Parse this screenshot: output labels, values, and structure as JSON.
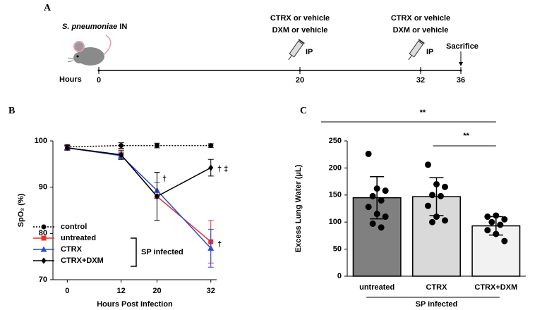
{
  "chart_data": [
    {
      "type": "timeline",
      "panel": "A",
      "xlabel": "Hours",
      "xlim": [
        0,
        36
      ],
      "xticks": [
        0,
        20,
        32,
        36
      ],
      "events": [
        {
          "x": 0,
          "species": "S. pneumoniae",
          "route": "IN"
        },
        {
          "x": 20,
          "lines": [
            "CTRX or vehicle",
            "DXM or vehicle"
          ],
          "route": "IP"
        },
        {
          "x": 32,
          "lines": [
            "CTRX or vehicle",
            "DXM or vehicle"
          ],
          "route": "IP"
        },
        {
          "x": 36,
          "lines": [
            "Sacrifice"
          ]
        }
      ]
    },
    {
      "type": "line",
      "panel": "B",
      "xlabel": "Hours Post Infection",
      "ylabel": "SpO₂ (%)",
      "x": [
        0,
        12,
        20,
        32
      ],
      "xlim": [
        -3.2,
        33.3
      ],
      "xticks": [
        0,
        12,
        20,
        32
      ],
      "ylim": [
        70,
        100
      ],
      "yticks": [
        70,
        80,
        90,
        100
      ],
      "series": [
        {
          "name": "control",
          "color": "#000000",
          "marker": "circle",
          "linestyle": "dotted",
          "values": [
            98.7,
            99,
            99,
            99
          ],
          "errors": [
            0.5,
            0.6,
            0.5,
            0.4
          ]
        },
        {
          "name": "untreated",
          "color": "#e8302a",
          "marker": "square",
          "linestyle": "solid",
          "values": [
            98.5,
            97,
            88,
            78.2
          ],
          "errors": [
            0.5,
            0.8,
            5.2,
            4.6
          ]
        },
        {
          "name": "CTRX",
          "color": "#2a4bd7",
          "marker": "triangle",
          "linestyle": "solid",
          "values": [
            98.5,
            96.8,
            89.3,
            76.8
          ],
          "errors": [
            0.4,
            0.6,
            1.7,
            4.1
          ]
        },
        {
          "name": "CTRX+DXM",
          "color": "#000000",
          "marker": "diamond",
          "linestyle": "solid",
          "values": [
            98.5,
            97,
            88,
            94.2
          ],
          "errors": [
            0.5,
            1,
            5.2,
            1.8
          ]
        }
      ],
      "group_label": "SP infected",
      "annotations": [
        "†",
        "† ‡",
        "†"
      ]
    },
    {
      "type": "bar",
      "panel": "C",
      "ylabel": "Excess Lung Water (µL)",
      "categories": [
        "untreated",
        "CTRX",
        "CTRX+DXM"
      ],
      "values": [
        145,
        147,
        93
      ],
      "errors": [
        39,
        35,
        17
      ],
      "colors": [
        "#808080",
        "#d9d9d9",
        "#f2f2f2"
      ],
      "points": [
        [
          226,
          162,
          158,
          148,
          140,
          128,
          115,
          110,
          97,
          90
        ],
        [
          206,
          170,
          165,
          150,
          148,
          130,
          110,
          103,
          100
        ],
        [
          110,
          112,
          105,
          100,
          95,
          85,
          78,
          65
        ]
      ],
      "ylim": [
        0,
        250
      ],
      "yticks": [
        0,
        50,
        100,
        150,
        200,
        250
      ],
      "group_label": "SP infected",
      "annotations": [
        "**",
        "**"
      ]
    }
  ]
}
